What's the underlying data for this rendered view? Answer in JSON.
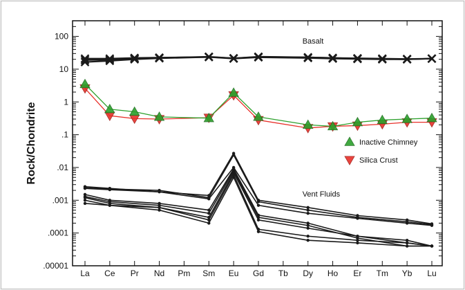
{
  "chart_data": {
    "type": "line",
    "title": "",
    "ylabel": "Rock/Chondrite",
    "xlabel": "",
    "y_scale": "log",
    "ylim": [
      1e-05,
      300
    ],
    "y_ticks": [
      {
        "value": 100,
        "label": "100"
      },
      {
        "value": 10,
        "label": "10"
      },
      {
        "value": 1,
        "label": "1"
      },
      {
        "value": 0.1,
        "label": ".1"
      },
      {
        "value": 0.01,
        "label": ".01"
      },
      {
        "value": 0.001,
        "label": ".001"
      },
      {
        "value": 0.0001,
        "label": ".0001"
      },
      {
        "value": 1e-05,
        "label": ".00001"
      }
    ],
    "categories": [
      "La",
      "Ce",
      "Pr",
      "Nd",
      "Pm",
      "Sm",
      "Eu",
      "Gd",
      "Tb",
      "Dy",
      "Ho",
      "Er",
      "Tm",
      "Yb",
      "Lu"
    ],
    "annotations": [
      {
        "text": "Basalt",
        "x": "Dy",
        "y": 60
      },
      {
        "text": "Vent Fluids",
        "x": "Dy",
        "y": 0.0013
      }
    ],
    "legend": {
      "placement": "right",
      "entries": [
        "Inactive Chimney",
        "Silica Crust"
      ]
    },
    "series": [
      {
        "name": "Inactive Chimney",
        "group": "chimney",
        "color": "#2ca02c",
        "marker": "triangle-up",
        "x": [
          "La",
          "Ce",
          "Pr",
          "Nd",
          "Sm",
          "Eu",
          "Gd",
          "Dy",
          "Ho",
          "Er",
          "Tm",
          "Yb",
          "Lu"
        ],
        "values": [
          3.5,
          0.6,
          0.5,
          0.35,
          0.32,
          1.9,
          0.35,
          0.2,
          0.18,
          0.24,
          0.28,
          0.3,
          0.32
        ]
      },
      {
        "name": "Silica Crust",
        "group": "crust",
        "color": "#e8302a",
        "marker": "triangle-down",
        "x": [
          "La",
          "Ce",
          "Pr",
          "Nd",
          "Sm",
          "Eu",
          "Gd",
          "Dy",
          "Ho",
          "Er",
          "Tm",
          "Yb",
          "Lu"
        ],
        "values": [
          2.6,
          0.38,
          0.31,
          0.3,
          0.33,
          1.6,
          0.28,
          0.16,
          0.18,
          0.19,
          0.21,
          0.24,
          0.24
        ]
      },
      {
        "group": "basalt",
        "color": "#1a1a1a",
        "marker": "x",
        "x": [
          "La",
          "Ce",
          "Pr",
          "Nd",
          "Sm",
          "Eu",
          "Gd",
          "Dy",
          "Ho",
          "Er",
          "Tm",
          "Yb",
          "Lu"
        ],
        "values": [
          21,
          21,
          22,
          22.5,
          23.5,
          21.5,
          23.5,
          23,
          22,
          21.5,
          21,
          20.5,
          21
        ]
      },
      {
        "group": "basalt",
        "color": "#1a1a1a",
        "marker": "x",
        "x": [
          "La",
          "Ce",
          "Pr",
          "Nd",
          "Sm",
          "Eu",
          "Gd",
          "Dy",
          "Ho",
          "Er",
          "Tm",
          "Yb",
          "Lu"
        ],
        "values": [
          16.5,
          18,
          20,
          21.5,
          23.5,
          21,
          23,
          22,
          21,
          20.5,
          20,
          20,
          21
        ]
      },
      {
        "group": "basalt",
        "color": "#1a1a1a",
        "marker": "x",
        "x": [
          "La",
          "Ce",
          "Pr",
          "Nd",
          "Sm",
          "Eu",
          "Gd",
          "Dy",
          "Ho",
          "Er",
          "Tm",
          "Yb",
          "Lu"
        ],
        "values": [
          19,
          19.5,
          21,
          22,
          24,
          21.5,
          24,
          23,
          22,
          21,
          20.5,
          20,
          21
        ]
      },
      {
        "group": "vent",
        "color": "#1a1a1a",
        "marker": "dot",
        "x": [
          "La",
          "Ce",
          "Sm",
          "Eu",
          "Gd",
          "Dy",
          "Er",
          "Yb",
          "Lu"
        ],
        "values": [
          0.0026,
          0.0023,
          0.0014,
          0.027,
          0.001,
          0.0006,
          0.00034,
          0.00025,
          0.00019
        ]
      },
      {
        "group": "vent",
        "color": "#1a1a1a",
        "marker": "dot",
        "x": [
          "La",
          "Ce",
          "Nd",
          "Sm",
          "Eu",
          "Gd",
          "Dy",
          "Er",
          "Yb",
          "Lu"
        ],
        "values": [
          0.0024,
          0.0022,
          0.002,
          0.0012,
          0.024,
          0.0009,
          0.0005,
          0.0003,
          0.00022,
          0.00018
        ]
      },
      {
        "group": "vent",
        "color": "#1a1a1a",
        "marker": "dot",
        "x": [
          "La",
          "Ce",
          "Nd",
          "Sm",
          "Eu",
          "Gd",
          "Dy",
          "Er",
          "Yb",
          "Lu"
        ],
        "values": [
          0.0023,
          0.0021,
          0.0018,
          0.0011,
          0.01,
          0.0007,
          0.0004,
          0.00028,
          0.0002,
          0.00017
        ]
      },
      {
        "group": "vent",
        "color": "#1a1a1a",
        "marker": "dot",
        "x": [
          "La",
          "Ce",
          "Nd",
          "Sm",
          "Eu",
          "Gd",
          "Dy",
          "Er",
          "Yb",
          "Lu"
        ],
        "values": [
          0.0015,
          0.001,
          0.0008,
          0.0005,
          0.009,
          0.00035,
          0.0002,
          8e-05,
          5e-05,
          4e-05
        ]
      },
      {
        "group": "vent",
        "color": "#1a1a1a",
        "marker": "dot",
        "x": [
          "La",
          "Ce",
          "Nd",
          "Sm",
          "Eu",
          "Gd",
          "Dy",
          "Er",
          "Yb",
          "Lu"
        ],
        "values": [
          0.0013,
          0.0009,
          0.0007,
          0.0004,
          0.008,
          0.0003,
          0.00017,
          7e-05,
          4e-05,
          4e-05
        ]
      },
      {
        "group": "vent",
        "color": "#1a1a1a",
        "marker": "dot",
        "x": [
          "La",
          "Ce",
          "Nd",
          "Sm",
          "Eu",
          "Gd",
          "Dy",
          "Er",
          "Yb",
          "Lu"
        ],
        "values": [
          0.0012,
          0.0008,
          0.0006,
          0.0003,
          0.007,
          0.00025,
          0.00014,
          8e-05,
          6e-05,
          4e-05
        ]
      },
      {
        "group": "vent",
        "color": "#1a1a1a",
        "marker": "dot",
        "x": [
          "La",
          "Ce",
          "Nd",
          "Sm",
          "Eu",
          "Gd",
          "Dy",
          "Er",
          "Yb",
          "Lu"
        ],
        "values": [
          0.001,
          0.0007,
          0.0006,
          0.00025,
          0.006,
          0.00013,
          8e-05,
          6e-05,
          5e-05,
          4e-05
        ]
      },
      {
        "group": "vent",
        "color": "#1a1a1a",
        "marker": "dot",
        "x": [
          "La",
          "Ce",
          "Nd",
          "Sm",
          "Eu",
          "Gd",
          "Dy",
          "Er",
          "Yb",
          "Lu"
        ],
        "values": [
          0.0008,
          0.0007,
          0.0005,
          0.0002,
          0.005,
          0.00011,
          6e-05,
          5e-05,
          4e-05,
          4e-05
        ]
      }
    ]
  }
}
